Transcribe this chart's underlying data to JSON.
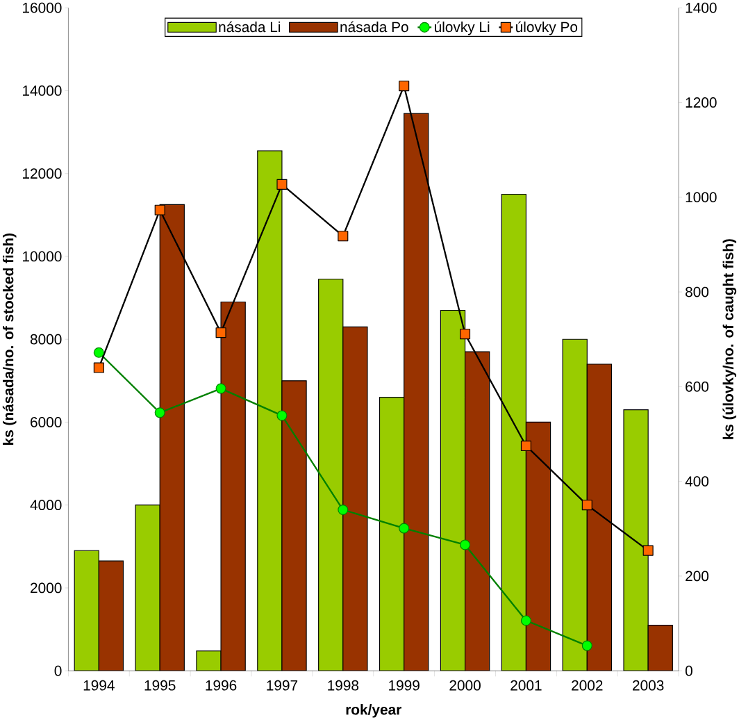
{
  "chart_data": {
    "type": "bar",
    "xlabel": "rok/year",
    "ylabel": "ks (násada/no. of stocked fish)",
    "y2label": "ks (úlovky/no. of caught fish)",
    "categories": [
      "1994",
      "1995",
      "1996",
      "1997",
      "1998",
      "1999",
      "2000",
      "2001",
      "2002",
      "2003"
    ],
    "series": [
      {
        "name": "násada Li",
        "color": "#99cc00",
        "values": [
          2900,
          4000,
          480,
          12550,
          9450,
          6600,
          8700,
          11500,
          8000,
          6300
        ]
      },
      {
        "name": "násada Po",
        "color": "#993300",
        "values": [
          2650,
          11250,
          8900,
          7000,
          8300,
          13450,
          7700,
          6000,
          7400,
          1100
        ]
      },
      {
        "name": "úlovky Li",
        "type": "line",
        "axis": "y2",
        "marker": "circle",
        "color": "#008000",
        "values": [
          672,
          545,
          596,
          539,
          340,
          301,
          266,
          106,
          53,
          null
        ]
      },
      {
        "name": "úlovky Po",
        "type": "line",
        "axis": "y2",
        "marker": "square",
        "color": "#000000",
        "values": [
          640,
          973,
          714,
          1027,
          918,
          1235,
          711,
          475,
          350,
          254
        ]
      }
    ],
    "ylim": [
      0,
      16000
    ],
    "yticks": [
      0,
      2000,
      4000,
      6000,
      8000,
      10000,
      12000,
      14000,
      16000
    ],
    "y2lim": [
      0,
      1400
    ],
    "y2ticks": [
      0,
      200,
      400,
      600,
      800,
      1000,
      1200,
      1400
    ],
    "grid": false,
    "legend": "top"
  }
}
